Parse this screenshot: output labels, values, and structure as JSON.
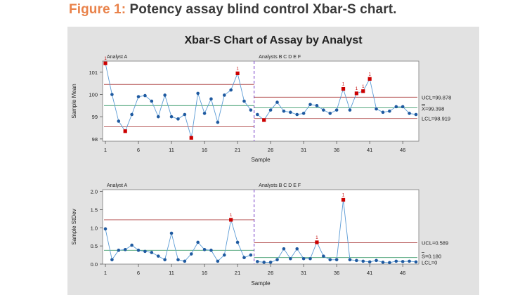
{
  "figure": {
    "number_label": "Figure 1:",
    "caption": "Potency assay blind control Xbar-S chart."
  },
  "chart_data": {
    "type": "line",
    "title": "Xbar-S Chart of Assay by Analyst",
    "colors": {
      "panel_bg": "#e2e2e2",
      "plot_bg": "#ffffff",
      "line": "#5b9bd5",
      "point": "#1f5aa0",
      "out_of_control": "#cc0000",
      "center_line": "#3a9a6a",
      "control_limit": "#b04a4a",
      "stage_divider": "#8a5ad0"
    },
    "x": [
      1,
      2,
      3,
      4,
      5,
      6,
      7,
      8,
      9,
      10,
      11,
      12,
      13,
      14,
      15,
      16,
      17,
      18,
      19,
      20,
      21,
      22,
      23,
      24,
      25,
      26,
      27,
      28,
      29,
      30,
      31,
      32,
      33,
      34,
      35,
      36,
      37,
      38,
      39,
      40,
      41,
      42,
      43,
      44,
      45,
      46,
      47,
      48
    ],
    "stages": [
      {
        "name": "Analyst A",
        "start": 1,
        "end": 23
      },
      {
        "name": "Analysts B C D E F",
        "start": 24,
        "end": 48
      }
    ],
    "panels": [
      {
        "id": "mean",
        "ylabel": "Sample Mean",
        "xlabel": "Sample",
        "ylim": [
          97.9,
          101.5
        ],
        "yticks": [
          {
            "value": 98,
            "label": "98"
          },
          {
            "value": 99,
            "label": "99"
          },
          {
            "value": 100,
            "label": "100"
          },
          {
            "value": 101,
            "label": "101"
          }
        ],
        "xticks": [
          1,
          6,
          11,
          16,
          21,
          26,
          31,
          36,
          41,
          46
        ],
        "values": [
          101.4,
          100.0,
          98.8,
          98.35,
          99.1,
          99.9,
          99.95,
          99.7,
          99.0,
          99.97,
          99.0,
          98.9,
          99.1,
          98.05,
          100.05,
          99.15,
          99.8,
          98.75,
          99.97,
          100.2,
          100.95,
          99.7,
          99.3,
          99.1,
          98.85,
          99.3,
          99.65,
          99.25,
          99.2,
          99.1,
          99.15,
          99.55,
          99.5,
          99.3,
          99.15,
          99.3,
          100.25,
          99.3,
          100.05,
          100.15,
          100.7,
          99.35,
          99.2,
          99.25,
          99.45,
          99.45,
          99.15,
          99.1
        ],
        "out_of_control": [
          {
            "x": 1,
            "flag": "1"
          },
          {
            "x": 4,
            "flag": ""
          },
          {
            "x": 14,
            "flag": ""
          },
          {
            "x": 21,
            "flag": "1"
          },
          {
            "x": 25,
            "flag": ""
          },
          {
            "x": 37,
            "flag": "1"
          },
          {
            "x": 39,
            "flag": "1"
          },
          {
            "x": 40,
            "flag": "1"
          },
          {
            "x": 41,
            "flag": "1"
          }
        ],
        "limits_by_stage": [
          {
            "ucl": 100.45,
            "center": 99.5,
            "lcl": 98.55
          },
          {
            "ucl": 99.878,
            "center": 99.398,
            "lcl": 98.919
          }
        ],
        "limit_labels": {
          "ucl": "UCL=99.878",
          "center": "X=99.398",
          "lcl": "LCL=98.919"
        }
      },
      {
        "id": "stdev",
        "ylabel": "Sample StDev",
        "xlabel": "Sample",
        "ylim": [
          0,
          2.05
        ],
        "yticks": [
          {
            "value": 0.0,
            "label": "0.0"
          },
          {
            "value": 0.5,
            "label": "0.5"
          },
          {
            "value": 1.0,
            "label": "1.0"
          },
          {
            "value": 1.5,
            "label": "1.5"
          },
          {
            "value": 2.0,
            "label": "2.0"
          }
        ],
        "xticks": [
          1,
          6,
          11,
          16,
          21,
          26,
          31,
          36,
          41,
          46
        ],
        "values": [
          0.97,
          0.12,
          0.38,
          0.4,
          0.52,
          0.38,
          0.35,
          0.32,
          0.22,
          0.12,
          0.85,
          0.12,
          0.08,
          0.28,
          0.6,
          0.4,
          0.38,
          0.08,
          0.25,
          1.22,
          0.6,
          0.18,
          0.25,
          0.07,
          0.05,
          0.05,
          0.12,
          0.42,
          0.15,
          0.42,
          0.15,
          0.15,
          0.6,
          0.22,
          0.12,
          0.12,
          1.77,
          0.12,
          0.1,
          0.08,
          0.06,
          0.1,
          0.05,
          0.04,
          0.08,
          0.07,
          0.08,
          0.06
        ],
        "out_of_control": [
          {
            "x": 20,
            "flag": "1"
          },
          {
            "x": 33,
            "flag": "1"
          },
          {
            "x": 37,
            "flag": "1"
          }
        ],
        "limits_by_stage": [
          {
            "ucl": 1.22,
            "center": 0.38,
            "lcl": 0
          },
          {
            "ucl": 0.589,
            "center": 0.18,
            "lcl": 0
          }
        ],
        "limit_labels": {
          "ucl": "UCL=0.589",
          "center": "S=0.180",
          "lcl": "LCL=0"
        }
      }
    ]
  }
}
